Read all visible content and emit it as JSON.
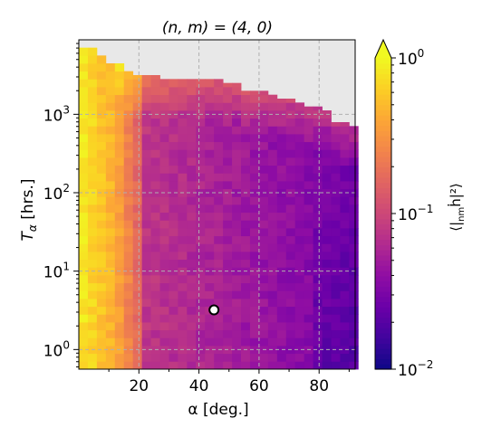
{
  "chart_data": {
    "type": "heatmap",
    "title": "(n, m) = (4, 0)",
    "xlabel": "α [deg.]",
    "ylabel": "T_α [hrs.]",
    "colorbar_label": "⟨|_{nm}ḣ|²⟩",
    "xlim": [
      0,
      92
    ],
    "x_bin_width": 3,
    "ylim_log10": [
      -0.25,
      3.95
    ],
    "y_scale": "log",
    "y_bin_log10_width": 0.1,
    "x_ticks": [
      20,
      40,
      60,
      80
    ],
    "x_tick_labels": [
      "20",
      "40",
      "60",
      "80"
    ],
    "y_ticks_log10": [
      0,
      1,
      2,
      3
    ],
    "y_tick_labels": [
      "10^0",
      "10^1",
      "10^2",
      "10^3"
    ],
    "color_scale": "log",
    "clim": [
      0.01,
      1.0
    ],
    "colorbar_ticks": [
      0.01,
      0.1,
      1.0
    ],
    "colorbar_tick_labels": [
      "10^-2",
      "10^-1",
      "10^0"
    ],
    "colormap": "plasma",
    "colorbar_extend": "max",
    "missing_color": "#e8e8e8",
    "grid": true,
    "upper_boundary_log10": [
      3.85,
      3.85,
      3.75,
      3.65,
      3.65,
      3.55,
      3.5,
      3.5,
      3.5,
      3.45,
      3.45,
      3.45,
      3.45,
      3.45,
      3.45,
      3.45,
      3.4,
      3.4,
      3.3,
      3.3,
      3.3,
      3.25,
      3.2,
      3.2,
      3.15,
      3.1,
      3.1,
      3.05,
      2.9,
      2.9,
      2.85
    ],
    "marker": {
      "x": 45,
      "y": 3.2,
      "label": ""
    },
    "colors": {
      "marker_fill": "#ffffff",
      "marker_edge": "#000000",
      "grid": "#b0b0b0"
    }
  }
}
